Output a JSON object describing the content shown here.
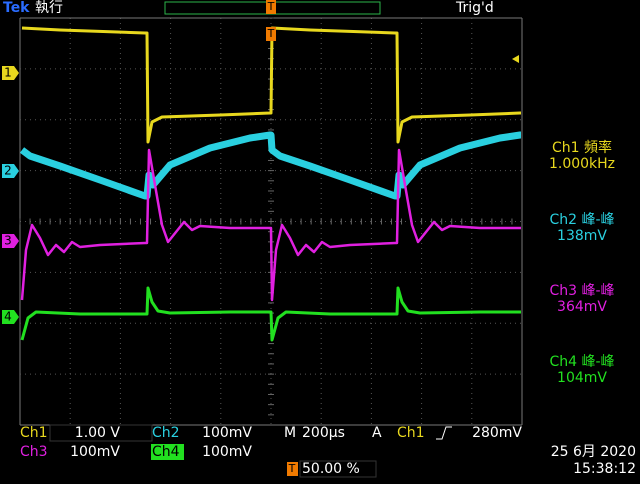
{
  "header": {
    "brand": "Tek",
    "status": "執行",
    "trigger_status": "Trig'd",
    "trigger_marker": "T"
  },
  "channel_markers": [
    "1",
    "2",
    "3",
    "4"
  ],
  "measurements": [
    {
      "label": "Ch1 頻率",
      "value": "1.000kHz"
    },
    {
      "label": "Ch2 峰-峰",
      "value": "138mV"
    },
    {
      "label": "Ch3 峰-峰",
      "value": "364mV"
    },
    {
      "label": "Ch4 峰-峰",
      "value": "104mV"
    }
  ],
  "channels": [
    {
      "name": "Ch1",
      "scale": "1.00 V"
    },
    {
      "name": "Ch2",
      "scale": "100mV"
    },
    {
      "name": "Ch3",
      "scale": "100mV"
    },
    {
      "name": "Ch4",
      "scale": "100mV"
    }
  ],
  "timebase": {
    "label": "M",
    "value": "200µs"
  },
  "trigger": {
    "mode": "A",
    "source": "Ch1",
    "level": "280mV"
  },
  "trigger_position": {
    "marker": "T",
    "value": "50.00 %"
  },
  "date": "25 6月  2020",
  "time": "15:38:12"
}
